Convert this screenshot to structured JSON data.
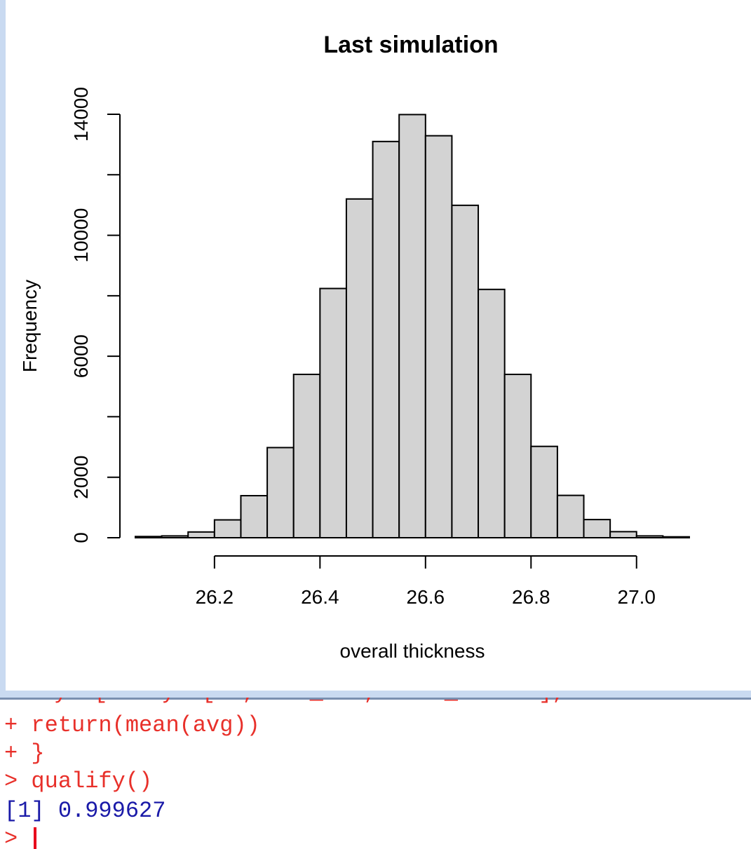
{
  "chart_data": {
    "type": "bar",
    "title": "Last simulation",
    "xlabel": "overall thickness",
    "ylabel": "Frequency",
    "bin_edges": [
      26.05,
      26.1,
      26.15,
      26.2,
      26.25,
      26.3,
      26.35,
      26.4,
      26.45,
      26.5,
      26.55,
      26.6,
      26.65,
      26.7,
      26.75,
      26.8,
      26.85,
      26.9,
      26.95,
      27.0,
      27.05,
      27.1
    ],
    "values": [
      40,
      60,
      190,
      590,
      1390,
      2980,
      5400,
      8240,
      11200,
      13100,
      13990,
      13290,
      10990,
      8210,
      5400,
      3020,
      1400,
      600,
      200,
      60,
      30
    ],
    "x_ticks": [
      "26.2",
      "26.4",
      "26.6",
      "26.8",
      "27.0"
    ],
    "x_tick_values": [
      26.2,
      26.4,
      26.6,
      26.8,
      27.0
    ],
    "y_ticks": [
      "0",
      "2000",
      "6000",
      "10000",
      "14000"
    ],
    "y_tick_values": [
      0,
      2000,
      6000,
      10000,
      14000
    ],
    "y_minor_tick_values": [
      4000,
      8000,
      12000
    ],
    "xlim": [
      26.05,
      27.1
    ],
    "ylim": [
      0,
      14000
    ],
    "bar_color": "#d3d3d3"
  },
  "console": {
    "partial_line": "+   y  [    y  [  ,    _   ,     _      ],",
    "lines": [
      {
        "text": "+ return(mean(avg))",
        "kind": "cmd"
      },
      {
        "text": "+ }",
        "kind": "cmd"
      },
      {
        "text": "> qualify()",
        "kind": "cmd"
      },
      {
        "text": "[1] 0.999627",
        "kind": "out"
      },
      {
        "text": "> ",
        "kind": "prompt"
      }
    ]
  }
}
